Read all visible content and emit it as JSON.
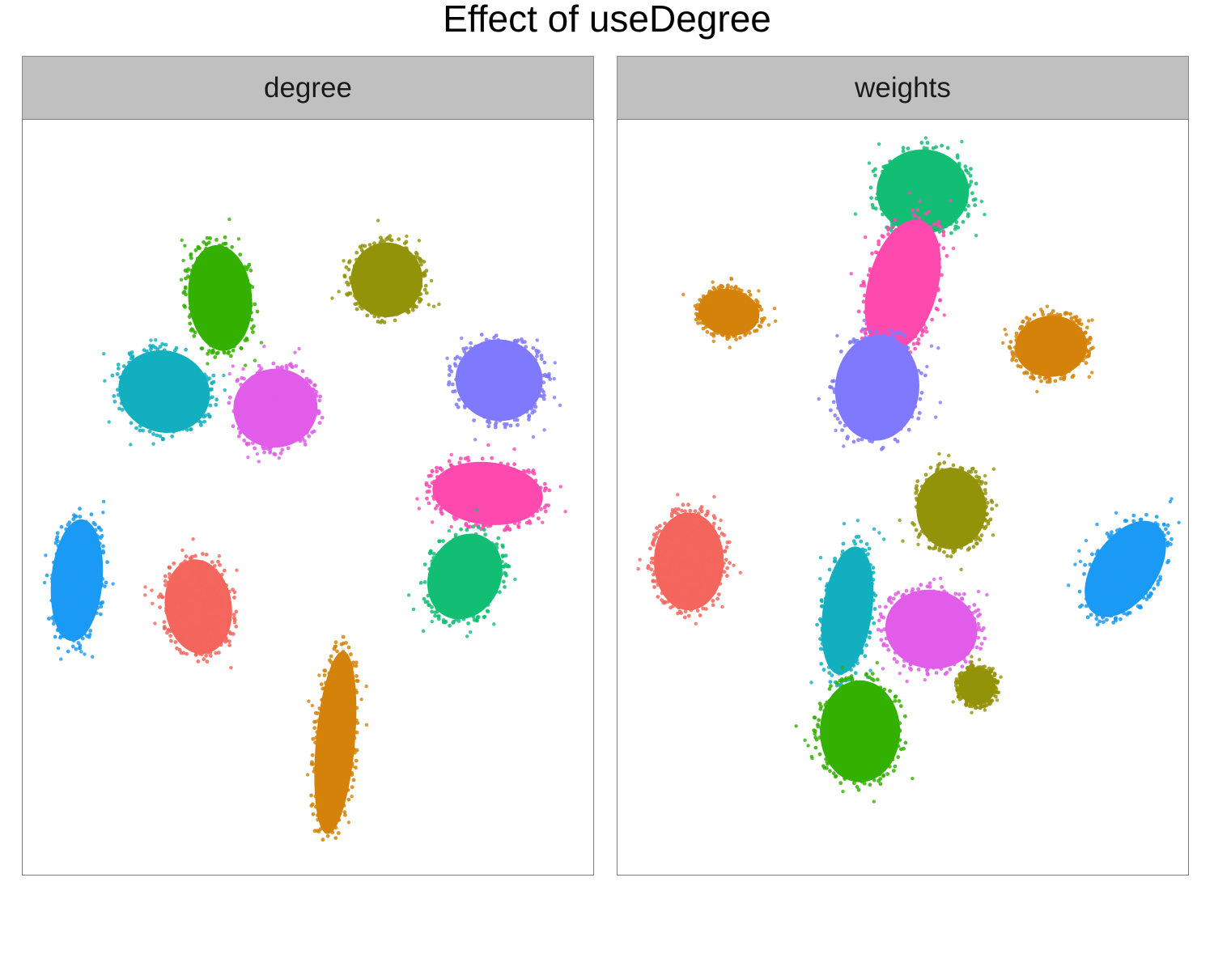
{
  "chart_data": {
    "type": "scatter",
    "title": "Effect of useDegree",
    "xlabel": "",
    "ylabel": "",
    "xlim": [
      0,
      100
    ],
    "ylim": [
      0,
      100
    ],
    "grid": false,
    "legend": "none",
    "panels": [
      {
        "label": "degree",
        "clusters": [
          {
            "color": "#34B000",
            "cx": 34.6,
            "cy": 76.4,
            "rx": 6.2,
            "ry": 7.8,
            "rot": 5
          },
          {
            "color": "#12AFBF",
            "cx": 24.8,
            "cy": 64.0,
            "rx": 9.0,
            "ry": 6.0,
            "rot": -18
          },
          {
            "color": "#E15CE8",
            "cx": 44.3,
            "cy": 61.8,
            "rx": 8.2,
            "ry": 5.8,
            "rot": 8
          },
          {
            "color": "#93930A",
            "cx": 63.8,
            "cy": 78.8,
            "rx": 7.0,
            "ry": 5.5,
            "rot": 0
          },
          {
            "color": "#7F79FE",
            "cx": 83.5,
            "cy": 65.5,
            "rx": 8.5,
            "ry": 6.0,
            "rot": -10
          },
          {
            "color": "#FE4AAE",
            "cx": 81.5,
            "cy": 50.5,
            "rx": 10.8,
            "ry": 4.6,
            "rot": -6
          },
          {
            "color": "#12BE74",
            "cx": 77.5,
            "cy": 39.5,
            "rx": 7.0,
            "ry": 6.5,
            "rot": -25
          },
          {
            "color": "#1A9AF4",
            "cx": 9.5,
            "cy": 39.0,
            "rx": 5.0,
            "ry": 9.0,
            "rot": -5
          },
          {
            "color": "#F4665D",
            "cx": 30.8,
            "cy": 35.5,
            "rx": 6.5,
            "ry": 7.0,
            "rot": 8
          },
          {
            "color": "#D5820A",
            "cx": 54.8,
            "cy": 17.5,
            "rx": 3.8,
            "ry": 13.5,
            "rot": -5
          }
        ]
      },
      {
        "label": "weights",
        "clusters": [
          {
            "color": "#12BE74",
            "cx": 53.5,
            "cy": 90.5,
            "rx": 9.0,
            "ry": 6.2,
            "rot": 0
          },
          {
            "color": "#FE4AAE",
            "cx": 50.0,
            "cy": 78.0,
            "rx": 6.8,
            "ry": 10.0,
            "rot": -15
          },
          {
            "color": "#7F79FE",
            "cx": 45.5,
            "cy": 64.5,
            "rx": 8.2,
            "ry": 7.8,
            "rot": -5
          },
          {
            "color": "#D5820A",
            "cx": 19.5,
            "cy": 74.5,
            "rx": 6.0,
            "ry": 3.4,
            "rot": -10
          },
          {
            "color": "#D5820A",
            "cx": 76.0,
            "cy": 70.0,
            "rx": 7.0,
            "ry": 4.5,
            "rot": 5
          },
          {
            "color": "#93930A",
            "cx": 58.5,
            "cy": 48.5,
            "rx": 6.8,
            "ry": 6.0,
            "rot": 0
          },
          {
            "color": "#F4665D",
            "cx": 12.5,
            "cy": 41.5,
            "rx": 6.8,
            "ry": 7.2,
            "rot": 0
          },
          {
            "color": "#1A9AF4",
            "cx": 89.0,
            "cy": 40.5,
            "rx": 6.2,
            "ry": 8.0,
            "rot": -35
          },
          {
            "color": "#12AFBF",
            "cx": 40.3,
            "cy": 35.0,
            "rx": 4.8,
            "ry": 9.5,
            "rot": -8
          },
          {
            "color": "#E15CE8",
            "cx": 55.0,
            "cy": 32.5,
            "rx": 9.0,
            "ry": 5.8,
            "rot": -10
          },
          {
            "color": "#93930A",
            "cx": 63.0,
            "cy": 25.0,
            "rx": 3.6,
            "ry": 2.8,
            "rot": 0
          },
          {
            "color": "#34B000",
            "cx": 42.5,
            "cy": 19.0,
            "rx": 7.8,
            "ry": 7.5,
            "rot": 0
          }
        ]
      }
    ]
  }
}
